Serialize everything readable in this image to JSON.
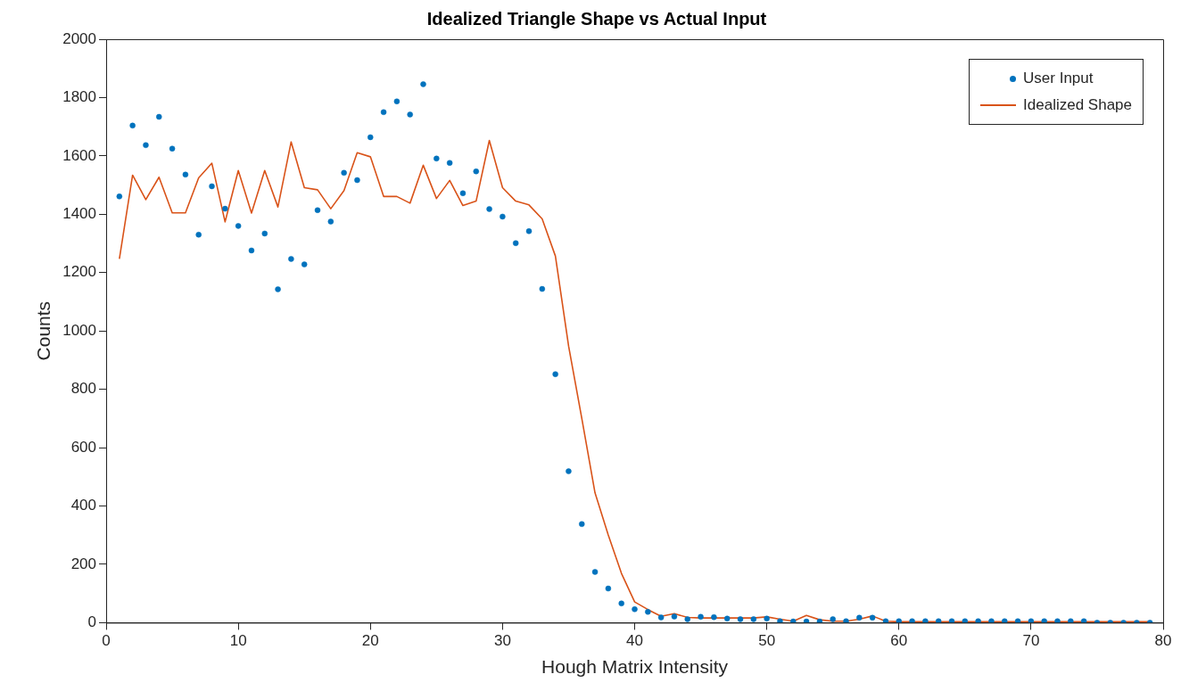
{
  "chart_data": {
    "type": "scatter",
    "title": "Idealized Triangle Shape vs Actual Input",
    "xlabel": "Hough Matrix Intensity",
    "ylabel": "Counts",
    "x": [
      1,
      2,
      3,
      4,
      5,
      6,
      7,
      8,
      9,
      10,
      11,
      12,
      13,
      14,
      15,
      16,
      17,
      18,
      19,
      20,
      21,
      22,
      23,
      24,
      25,
      26,
      27,
      28,
      29,
      30,
      31,
      32,
      33,
      34,
      35,
      36,
      37,
      38,
      39,
      40,
      41,
      42,
      43,
      44,
      45,
      46,
      47,
      48,
      49,
      50,
      51,
      52,
      53,
      54,
      55,
      56,
      57,
      58,
      59,
      60,
      61,
      62,
      63,
      64,
      65,
      66,
      67,
      68,
      69,
      70,
      71,
      72,
      73,
      74,
      75,
      76,
      77,
      78,
      79
    ],
    "xlim": [
      0,
      80
    ],
    "xticks": [
      0,
      10,
      20,
      30,
      40,
      50,
      60,
      70,
      80
    ],
    "ylim": [
      0,
      2000
    ],
    "yticks": [
      0,
      200,
      400,
      600,
      800,
      1000,
      1200,
      1400,
      1600,
      1800,
      2000
    ],
    "grid": false,
    "legend": "top right",
    "series": [
      {
        "name": "User Input",
        "type": "scatter",
        "marker": "circle",
        "color": "#0072bd",
        "values": [
          1461,
          1704,
          1637,
          1734,
          1625,
          1536,
          1330,
          1496,
          1419,
          1360,
          1276,
          1334,
          1143,
          1247,
          1228,
          1414,
          1375,
          1542,
          1517,
          1664,
          1750,
          1787,
          1742,
          1846,
          1591,
          1576,
          1472,
          1547,
          1418,
          1392,
          1301,
          1342,
          1144,
          852,
          519,
          338,
          174,
          117,
          66,
          46,
          37,
          18,
          21,
          12,
          20,
          19,
          14,
          12,
          12,
          14,
          5,
          4,
          4,
          4,
          12,
          5,
          17,
          17,
          5,
          5,
          5,
          5,
          5,
          5,
          5,
          5,
          5,
          5,
          5,
          5,
          5,
          5,
          5,
          5,
          0,
          0,
          0,
          0,
          0
        ]
      },
      {
        "name": "Idealized Shape",
        "type": "line",
        "marker": "none",
        "line_style": "solid",
        "color": "#d95319",
        "values": [
          1247,
          1534,
          1450,
          1527,
          1405,
          1405,
          1525,
          1575,
          1374,
          1550,
          1404,
          1550,
          1425,
          1648,
          1491,
          1484,
          1419,
          1481,
          1611,
          1597,
          1461,
          1461,
          1438,
          1568,
          1454,
          1516,
          1430,
          1445,
          1653,
          1491,
          1445,
          1432,
          1384,
          1257,
          948,
          700,
          445,
          301,
          169,
          71,
          45,
          22,
          31,
          18,
          16,
          16,
          16,
          16,
          16,
          20,
          12,
          5,
          25,
          10,
          5,
          5,
          12,
          23,
          5,
          3,
          3,
          3,
          3,
          3,
          3,
          3,
          3,
          3,
          3,
          3,
          3,
          3,
          3,
          3,
          3,
          3,
          3,
          3,
          3
        ]
      }
    ]
  }
}
